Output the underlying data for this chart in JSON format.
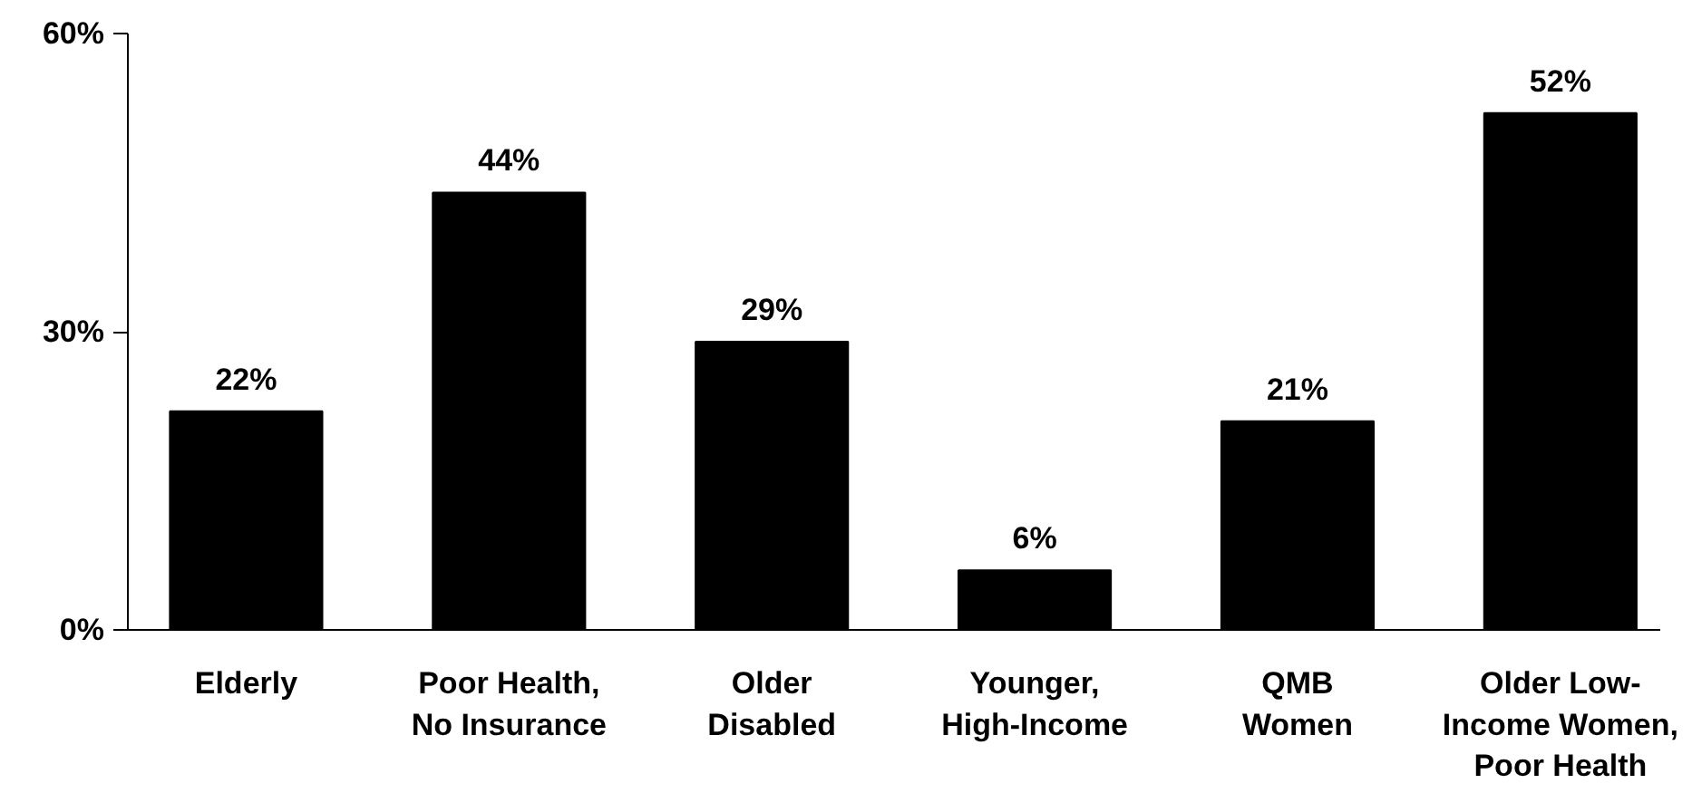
{
  "chart_data": {
    "type": "bar",
    "categories": [
      "Elderly",
      "Poor Health,\nNo Insurance",
      "Older\nDisabled",
      "Younger,\nHigh-Income",
      "QMB\nWomen",
      "Older Low-\nIncome Women,\nPoor Health"
    ],
    "values": [
      22,
      44,
      29,
      6,
      21,
      52
    ],
    "value_labels": [
      "22%",
      "44%",
      "29%",
      "6%",
      "21%",
      "52%"
    ],
    "color": "#000000",
    "ylim": [
      0,
      60
    ],
    "yticks": [
      {
        "value": 0,
        "label": "0%"
      },
      {
        "value": 30,
        "label": "30%"
      },
      {
        "value": 60,
        "label": "60%"
      }
    ],
    "grid": false
  }
}
